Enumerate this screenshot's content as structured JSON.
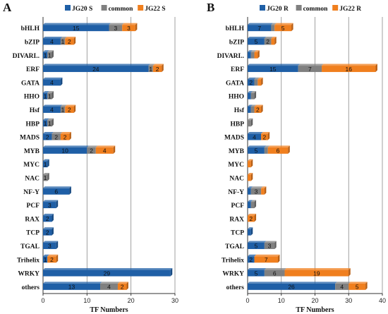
{
  "colors": {
    "JG20": "#1f5fa6",
    "JG20_dark": "#174a82",
    "common": "#808080",
    "common_dark": "#5f5f5f",
    "JG22": "#f07f1e",
    "JG22_dark": "#b85f14",
    "gridline": "#888888"
  },
  "chart_data": [
    {
      "panel": "A",
      "type": "bar",
      "stacked": true,
      "orientation": "horizontal",
      "xlabel": "TF Numbers",
      "xlim": [
        0,
        30
      ],
      "xticks": [
        0,
        10,
        20,
        30
      ],
      "grid": "vertical",
      "legend_position": "top",
      "categories": [
        "bHLH",
        "bZIP",
        "DIVARI..",
        "ERF",
        "GATA",
        "HHO",
        "Hsf",
        "HBP",
        "MADS",
        "MYB",
        "MYC",
        "NAC",
        "NF-Y",
        "PCF",
        "RAX",
        "TCP",
        "TGAL",
        "Trihelix",
        "WRKY",
        "others"
      ],
      "series": [
        {
          "name": "JG20 S",
          "key": "JG20",
          "values": [
            15,
            4,
            1,
            24,
            4,
            1,
            4,
            1,
            2,
            10,
            1,
            0,
            6,
            3,
            2,
            2,
            3,
            1,
            29,
            13
          ]
        },
        {
          "name": "common",
          "key": "common",
          "values": [
            3,
            1,
            1,
            1,
            0,
            1,
            1,
            1,
            2,
            2,
            0,
            1,
            0,
            0,
            0,
            0,
            0,
            0,
            0,
            4
          ]
        },
        {
          "name": "JG22 S",
          "key": "JG22",
          "values": [
            3,
            2,
            0,
            2,
            0,
            0,
            2,
            0,
            2,
            4,
            0,
            0,
            0,
            0,
            0,
            0,
            0,
            2,
            0,
            2
          ]
        }
      ]
    },
    {
      "panel": "B",
      "type": "bar",
      "stacked": true,
      "orientation": "horizontal",
      "xlabel": "TF Numbers",
      "xlim": [
        0,
        40
      ],
      "xticks": [
        0,
        10,
        20,
        30,
        40
      ],
      "grid": "vertical",
      "legend_position": "top",
      "categories": [
        "bHLH",
        "bZIP",
        "DIVARI..",
        "ERF",
        "GATA",
        "HHO",
        "Hsf",
        "HBP",
        "MADS",
        "MYB",
        "MYC",
        "NAC",
        "NF-Y",
        "PCF",
        "RAX",
        "TCP",
        "TGAL",
        "Trihelix",
        "WRKY",
        "others"
      ],
      "series": [
        {
          "name": "JG20 R",
          "key": "JG20",
          "values": [
            7,
            5,
            1,
            15,
            2,
            1,
            1,
            0,
            4,
            5,
            0,
            0,
            1,
            1,
            0,
            1,
            5,
            2,
            5,
            26
          ]
        },
        {
          "name": "common",
          "key": "common",
          "values": [
            1,
            2,
            1,
            7,
            1,
            1,
            1,
            1,
            0,
            1,
            0,
            0,
            3,
            1,
            0,
            0,
            3,
            0,
            6,
            4
          ]
        },
        {
          "name": "JG22 R",
          "key": "JG22",
          "values": [
            5,
            1,
            1,
            16,
            1,
            0,
            2,
            0,
            2,
            6,
            1,
            1,
            1,
            0,
            2,
            0,
            0,
            7,
            19,
            5
          ]
        }
      ]
    }
  ]
}
